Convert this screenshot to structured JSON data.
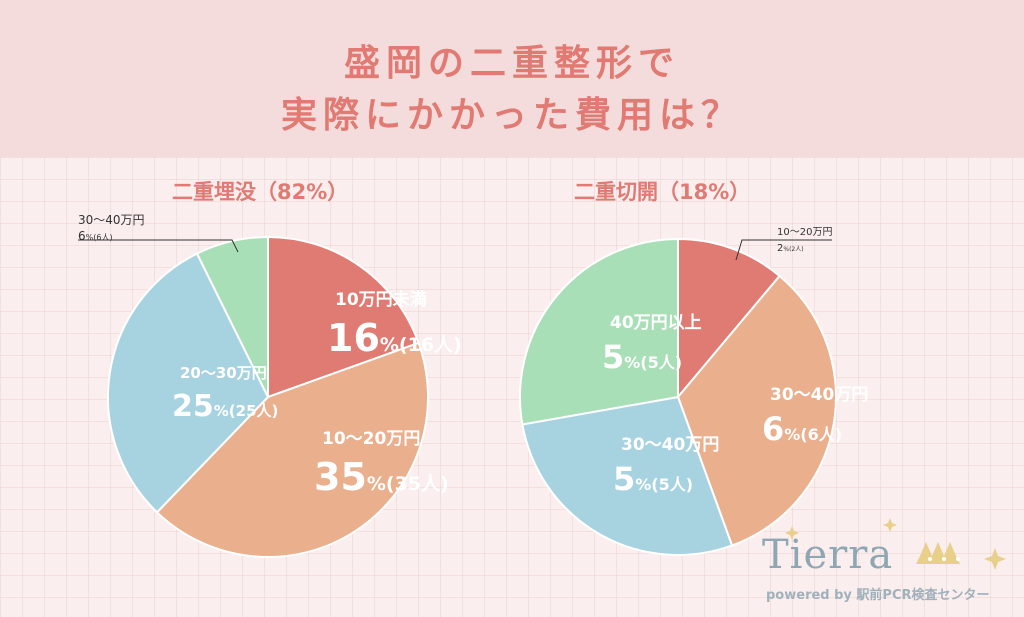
{
  "header": {
    "title_line1": "盛岡の二重整形で",
    "title_line2": "実際にかかった費用は？"
  },
  "logo": {
    "name": "Tierra",
    "subtitle": "powered by 駅前PCR検査センター"
  },
  "colors": {
    "red": "#df7b72",
    "orange": "#eaaf8c",
    "blue": "#a7d3e0",
    "green": "#a8dfb7",
    "title": "#e07a72"
  },
  "chart_data": [
    {
      "type": "pie",
      "title": "二重埋没（82%）",
      "slices": [
        {
          "label": "10万円未満",
          "pct_label": "16",
          "count_label": "(16人)",
          "value": 16,
          "color": "#df7b72"
        },
        {
          "label": "10〜20万円",
          "pct_label": "35",
          "count_label": "(35人)",
          "value": 35,
          "color": "#eaaf8c"
        },
        {
          "label": "20〜30万円",
          "pct_label": "25",
          "count_label": "(25人)",
          "value": 25,
          "color": "#a7d3e0"
        },
        {
          "label": "30〜40万円",
          "pct_label": "6",
          "count_label": "(6人)",
          "value": 6,
          "color": "#a8dfb7"
        }
      ]
    },
    {
      "type": "pie",
      "title": "二重切開（18%）",
      "slices": [
        {
          "label": "10〜20万円",
          "pct_label": "2",
          "count_label": "(2人)",
          "value": 2,
          "color": "#df7b72"
        },
        {
          "label": "30〜40万円",
          "pct_label": "6",
          "count_label": "(6人)",
          "value": 6,
          "color": "#eaaf8c"
        },
        {
          "label": "30〜40万円",
          "pct_label": "5",
          "count_label": "(5人)",
          "value": 5,
          "color": "#a7d3e0"
        },
        {
          "label": "40万円以上",
          "pct_label": "5",
          "count_label": "(5人)",
          "value": 5,
          "color": "#a8dfb7"
        }
      ]
    }
  ],
  "units": {
    "percent": "%"
  }
}
